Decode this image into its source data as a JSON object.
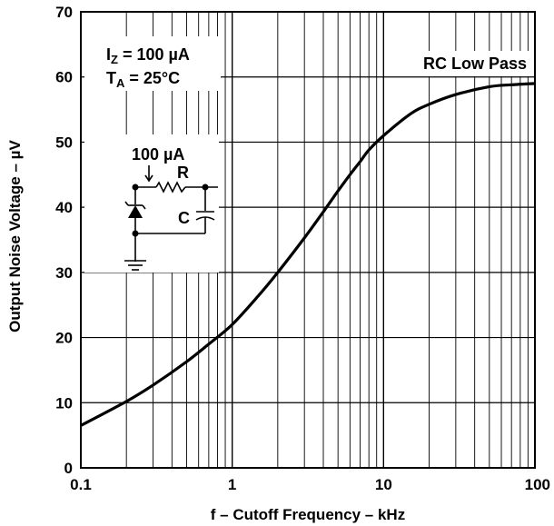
{
  "chart_data": {
    "type": "line",
    "xlabel": "f – Cutoff Frequency – kHz",
    "ylabel": "Output Noise Voltage – µV",
    "xscale": "log",
    "xlim": [
      0.1,
      100
    ],
    "ylim": [
      0,
      70
    ],
    "grid": true,
    "x_ticks": [
      "0.1",
      "1",
      "10",
      "100"
    ],
    "y_ticks": [
      "0",
      "10",
      "20",
      "30",
      "40",
      "50",
      "60",
      "70"
    ],
    "series": [
      {
        "name": "RC Low Pass",
        "x": [
          0.1,
          0.2,
          0.3,
          0.5,
          0.7,
          1.0,
          1.5,
          2.0,
          3.0,
          4.0,
          5.0,
          6.0,
          7.0,
          8.0,
          10,
          15,
          20,
          30,
          50,
          70,
          100
        ],
        "y": [
          6.5,
          10.2,
          12.7,
          16.3,
          19.0,
          22.0,
          26.5,
          30.0,
          35.3,
          39.3,
          42.5,
          45.0,
          47.0,
          48.8,
          51.0,
          54.3,
          55.8,
          57.3,
          58.5,
          58.8,
          59.0
        ]
      }
    ],
    "annotations": {
      "iz_main": "I",
      "iz_sub": "Z",
      "iz_rest": " = 100 µA",
      "ta_main": "T",
      "ta_sub": "A",
      "ta_rest": " = 25°C",
      "series_label": "RC Low Pass",
      "circuit_current": "100 µA",
      "circuit_r": "R",
      "circuit_c": "C"
    }
  }
}
